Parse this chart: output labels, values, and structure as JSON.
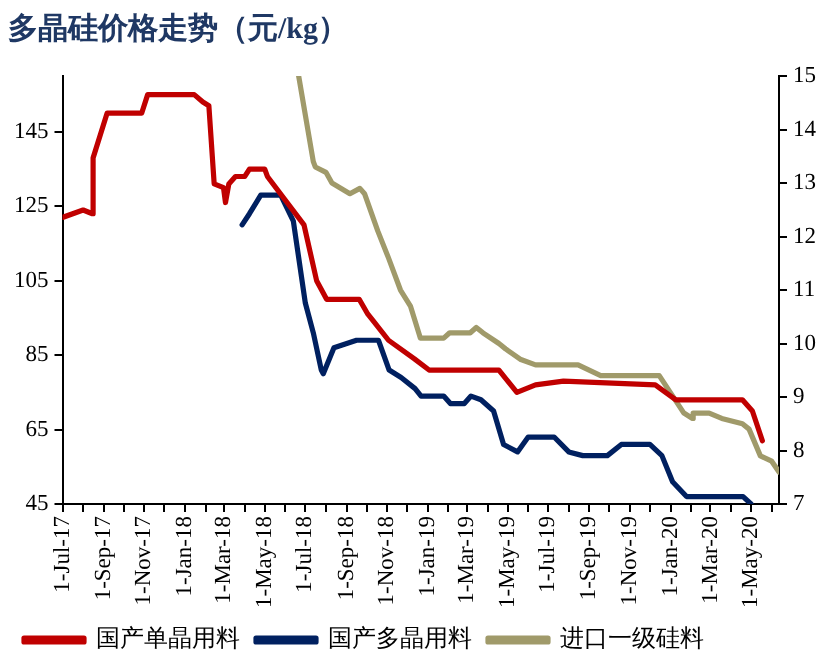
{
  "chart_data": {
    "type": "line",
    "title": "多晶硅价格走势（元/kg）",
    "xlim": [
      "2017-07-01",
      "2020-06-12"
    ],
    "xticks": [
      {
        "value": "2017-07-01",
        "label": "1-Jul-17"
      },
      {
        "value": "2017-08-01",
        "label": null
      },
      {
        "value": "2017-09-01",
        "label": "1-Sep-17"
      },
      {
        "value": "2017-10-01",
        "label": null
      },
      {
        "value": "2017-11-01",
        "label": "1-Nov-17"
      },
      {
        "value": "2017-12-01",
        "label": null
      },
      {
        "value": "2018-01-01",
        "label": "1-Jan-18"
      },
      {
        "value": "2018-02-01",
        "label": null
      },
      {
        "value": "2018-03-01",
        "label": "1-Mar-18"
      },
      {
        "value": "2018-04-01",
        "label": null
      },
      {
        "value": "2018-05-01",
        "label": "1-May-18"
      },
      {
        "value": "2018-06-01",
        "label": null
      },
      {
        "value": "2018-07-01",
        "label": "1-Jul-18"
      },
      {
        "value": "2018-08-01",
        "label": null
      },
      {
        "value": "2018-09-01",
        "label": "1-Sep-18"
      },
      {
        "value": "2018-10-01",
        "label": null
      },
      {
        "value": "2018-11-01",
        "label": "1-Nov-18"
      },
      {
        "value": "2018-12-01",
        "label": null
      },
      {
        "value": "2019-01-01",
        "label": "1-Jan-19"
      },
      {
        "value": "2019-02-01",
        "label": null
      },
      {
        "value": "2019-03-01",
        "label": "1-Mar-19"
      },
      {
        "value": "2019-04-01",
        "label": null
      },
      {
        "value": "2019-05-01",
        "label": "1-May-19"
      },
      {
        "value": "2019-06-01",
        "label": null
      },
      {
        "value": "2019-07-01",
        "label": "1-Jul-19"
      },
      {
        "value": "2019-08-01",
        "label": null
      },
      {
        "value": "2019-09-01",
        "label": "1-Sep-19"
      },
      {
        "value": "2019-10-01",
        "label": null
      },
      {
        "value": "2019-11-01",
        "label": "1-Nov-19"
      },
      {
        "value": "2019-12-01",
        "label": null
      },
      {
        "value": "2020-01-01",
        "label": "1-Jan-20"
      },
      {
        "value": "2020-02-01",
        "label": null
      },
      {
        "value": "2020-03-01",
        "label": "1-Mar-20"
      },
      {
        "value": "2020-04-01",
        "label": null
      },
      {
        "value": "2020-05-01",
        "label": "1-May-20"
      },
      {
        "value": "2020-06-01",
        "label": null
      }
    ],
    "ylim": [
      45,
      160
    ],
    "yticks": [
      45,
      65,
      85,
      105,
      125,
      145
    ],
    "y2lim": [
      7,
      15
    ],
    "y2ticks": [
      7,
      8,
      9,
      10,
      11,
      12,
      13,
      14,
      15
    ],
    "grid": false,
    "legend": "bottom",
    "marker": "none",
    "line_style": "solid",
    "series": [
      {
        "name": "国产单晶用料",
        "color": "#c00000",
        "x": [
          "2017-07-01",
          "2017-08-01",
          "2017-08-15",
          "2017-08-16",
          "2017-09-06",
          "2017-10-28",
          "2017-11-06",
          "2018-01-15",
          "2018-01-28",
          "2018-02-06",
          "2018-02-14",
          "2018-02-28",
          "2018-03-03",
          "2018-03-08",
          "2018-03-18",
          "2018-04-01",
          "2018-04-08",
          "2018-05-01",
          "2018-05-05",
          "2018-06-29",
          "2018-07-18",
          "2018-08-02",
          "2018-09-20",
          "2018-10-03",
          "2018-10-12",
          "2018-11-03",
          "2018-12-12",
          "2019-01-03",
          "2019-04-18",
          "2019-05-15",
          "2019-06-12",
          "2019-07-24",
          "2019-12-09",
          "2020-01-09",
          "2020-04-18",
          "2020-05-03",
          "2020-05-18"
        ],
        "values": [
          122,
          124,
          123,
          138,
          150,
          150,
          155,
          155,
          153,
          152,
          131,
          130,
          126,
          131,
          133,
          133,
          135,
          135,
          133,
          120,
          105,
          100,
          100,
          96,
          94,
          89,
          84,
          81,
          81,
          75,
          77,
          78,
          77,
          73,
          73,
          70,
          62
        ]
      },
      {
        "name": "国产多晶用料",
        "color": "#002060",
        "x": [
          "2018-03-28",
          "2018-04-08",
          "2018-04-25",
          "2018-05-25",
          "2018-06-13",
          "2018-06-22",
          "2018-07-01",
          "2018-07-13",
          "2018-07-25",
          "2018-07-28",
          "2018-08-13",
          "2018-09-16",
          "2018-10-19",
          "2018-11-04",
          "2018-11-22",
          "2018-12-13",
          "2018-12-22",
          "2019-01-25",
          "2019-02-04",
          "2019-02-25",
          "2019-03-07",
          "2019-03-22",
          "2019-04-10",
          "2019-04-25",
          "2019-05-16",
          "2019-06-01",
          "2019-07-10",
          "2019-08-01",
          "2019-08-22",
          "2019-09-28",
          "2019-10-19",
          "2019-12-01",
          "2019-12-19",
          "2020-01-04",
          "2020-01-25",
          "2020-04-19",
          "2020-05-01"
        ],
        "values": [
          120,
          123,
          128,
          128,
          121,
          110,
          99,
          91,
          81,
          80,
          87,
          89,
          89,
          81,
          79,
          76,
          74,
          74,
          72,
          72,
          74,
          73,
          70,
          61,
          59,
          63,
          63,
          59,
          58,
          58,
          61,
          61,
          58,
          51,
          47,
          47,
          45
        ]
      },
      {
        "name": "进口一级硅料",
        "color": "#a09a6a",
        "axis": "y2",
        "x": [
          "2018-06-21",
          "2018-07-13",
          "2018-07-16",
          "2018-08-01",
          "2018-08-10",
          "2018-09-06",
          "2018-09-21",
          "2018-09-28",
          "2018-10-18",
          "2018-11-03",
          "2018-11-21",
          "2018-12-06",
          "2018-12-21",
          "2019-01-25",
          "2019-02-03",
          "2019-03-06",
          "2019-03-15",
          "2019-03-25",
          "2019-04-18",
          "2019-04-28",
          "2019-05-21",
          "2019-06-12",
          "2019-06-22",
          "2019-08-15",
          "2019-09-18",
          "2019-12-01",
          "2019-12-08",
          "2019-12-15",
          "2020-01-21",
          "2020-02-03",
          "2020-02-04",
          "2020-02-28",
          "2020-03-18",
          "2020-04-18",
          "2020-04-28",
          "2020-05-15",
          "2020-06-01",
          "2020-06-12"
        ],
        "values": [
          15,
          13.4,
          13.3,
          13.2,
          13.0,
          12.8,
          12.9,
          12.8,
          12.1,
          11.6,
          11.0,
          10.7,
          10.1,
          10.1,
          10.2,
          10.2,
          10.3,
          10.2,
          10.0,
          9.9,
          9.7,
          9.6,
          9.6,
          9.6,
          9.4,
          9.4,
          9.4,
          9.4,
          8.7,
          8.6,
          8.7,
          8.7,
          8.6,
          8.5,
          8.4,
          7.9,
          7.8,
          7.6
        ]
      }
    ]
  }
}
